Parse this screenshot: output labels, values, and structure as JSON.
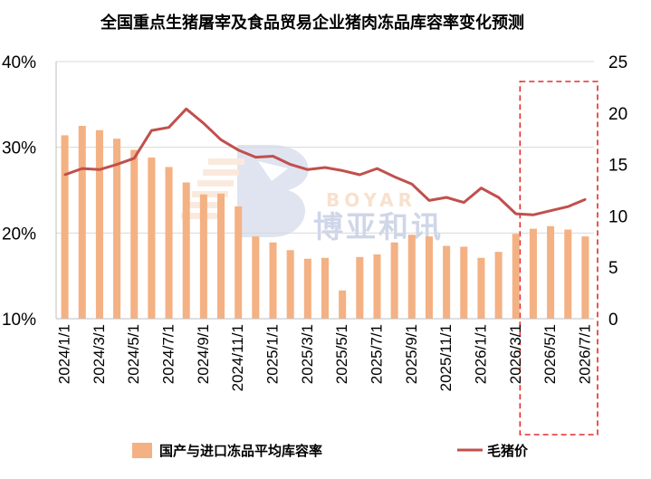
{
  "chart_data": {
    "type": "bar+line",
    "title": "全国重点生猪屠宰及食品贸易企业猪肉冻品库容率变化预测",
    "watermark": {
      "brand_en": "BOYAR",
      "brand_cn": "博亚和讯"
    },
    "x": [
      "2024/1/1",
      "2024/2/1",
      "2024/3/1",
      "2024/4/1",
      "2024/5/1",
      "2024/6/1",
      "2024/7/1",
      "2024/8/1",
      "2024/9/1",
      "2024/10/1",
      "2024/11/1",
      "2024/12/1",
      "2025/1/1",
      "2025/2/1",
      "2025/3/1",
      "2025/4/1",
      "2025/5/1",
      "2025/6/1",
      "2025/7/1",
      "2025/8/1",
      "2025/9/1",
      "2025/10/1",
      "2025/11/1",
      "2025/12/1",
      "2026/1/1",
      "2026/2/1",
      "2026/3/1",
      "2026/4/1",
      "2026/5/1",
      "2026/6/1",
      "2026/7/1"
    ],
    "x_tick_labels": [
      "2024/1/1",
      "2024/3/1",
      "2024/5/1",
      "2024/7/1",
      "2024/9/1",
      "2024/11/1",
      "2025/1/1",
      "2025/3/1",
      "2025/5/1",
      "2025/7/1",
      "2025/9/1",
      "2025/11/1",
      "2026/1/1",
      "2026/3/1",
      "2026/5/1",
      "2026/7/1"
    ],
    "y_left": {
      "min": 10,
      "max": 40,
      "ticks": [
        "10%",
        "20%",
        "30%",
        "40%"
      ]
    },
    "y_right": {
      "min": 0,
      "max": 25,
      "ticks": [
        "0",
        "5",
        "10",
        "15",
        "20",
        "25"
      ]
    },
    "series": [
      {
        "name": "国产与进口冻品平均库容率",
        "type": "bar",
        "axis": "left",
        "unit": "%",
        "color": "#F4B183",
        "values": [
          31.4,
          32.5,
          32.0,
          31.0,
          29.7,
          28.8,
          27.7,
          25.9,
          24.5,
          24.6,
          23.1,
          19.6,
          18.9,
          18.0,
          17.0,
          17.1,
          13.3,
          17.2,
          17.5,
          18.9,
          19.8,
          19.6,
          18.5,
          18.4,
          17.1,
          17.8,
          19.9,
          20.5,
          20.8,
          20.4,
          19.6
        ]
      },
      {
        "name": "毛猪价",
        "type": "line",
        "axis": "right",
        "color": "#C0504D",
        "values": [
          14.0,
          14.6,
          14.5,
          15.0,
          15.6,
          18.3,
          18.6,
          20.4,
          19.0,
          17.4,
          16.4,
          15.7,
          15.8,
          15.0,
          14.5,
          14.7,
          14.4,
          14.0,
          14.6,
          13.8,
          13.1,
          11.5,
          11.8,
          11.3,
          12.7,
          11.8,
          10.2,
          10.1,
          10.5,
          10.9,
          11.6
        ]
      }
    ],
    "highlight": {
      "start": "2026/4/1",
      "end": "2026/7/1",
      "style": "red dashed box"
    },
    "legend_position": "bottom",
    "grid": "horizontal"
  }
}
